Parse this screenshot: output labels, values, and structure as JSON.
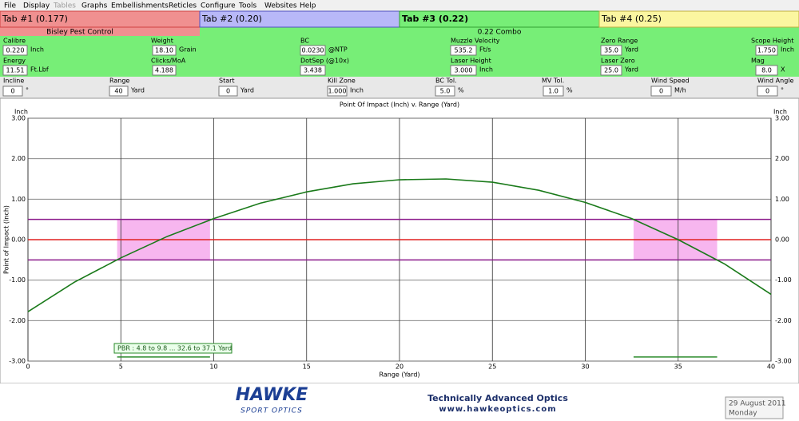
{
  "menu": [
    "File",
    "Display",
    "Tables",
    "Graphs",
    "Embellishments",
    "Reticles",
    "Configure",
    "Tools",
    "Websites",
    "Help"
  ],
  "tabs": [
    "Tab #1 (0.177)",
    "Tab #2 (0.20)",
    "Tab #3 (0.22)",
    "Tab #4 (0.25)"
  ],
  "profile": {
    "name": "Bisley Pest Control",
    "rifle": "0.22 Combo"
  },
  "fields": [
    {
      "label": "Calibre",
      "value": "0.220",
      "unit": "Inch"
    },
    {
      "label": "Weight",
      "value": "18.10",
      "unit": "Grain"
    },
    {
      "label": "BC",
      "value": "0.0230",
      "unit": "@NTP"
    },
    {
      "label": "Muzzle Velocity",
      "value": "535.2",
      "unit": "Ft/s"
    },
    {
      "label": "Zero Range",
      "value": "35.0",
      "unit": "Yard"
    },
    {
      "label": "Scope Height",
      "value": "1.750",
      "unit": "Inch"
    },
    {
      "label": "Energy",
      "value": "11.51",
      "unit": "Ft.Lbf"
    },
    {
      "label": "Clicks/MoA",
      "value": "4.188"
    },
    {
      "label": "DotSep (@10x)",
      "value": "3.438"
    },
    {
      "label": "Laser Height",
      "value": "3.000",
      "unit": "Inch"
    },
    {
      "label": "Laser Zero",
      "value": "25.0",
      "unit": "Yard"
    },
    {
      "label": "Mag",
      "value": "8.0",
      "unit": "X"
    },
    {
      "label": "Incline",
      "value": "0",
      "unit": "°"
    },
    {
      "label": "Range",
      "value": "40",
      "unit": "Yard"
    },
    {
      "label": "Start",
      "value": "0",
      "unit": "Yard"
    },
    {
      "label": "Kill Zone",
      "value": "1.000",
      "unit": "Inch"
    },
    {
      "label": "BC Tol.",
      "value": "5.0",
      "unit": "%"
    },
    {
      "label": "MV Tol.",
      "value": "1.0",
      "unit": "%"
    },
    {
      "label": "Wind Speed",
      "value": "0",
      "unit": "M/h"
    },
    {
      "label": "Wind Angle",
      "value": "0",
      "unit": "°"
    }
  ],
  "chart_data": {
    "type": "line",
    "title": "Point Of Impact (Inch) v. Range (Yard)",
    "x_label": "Range (Yard)",
    "y_label": "Point of Impact (Inch)",
    "y_unit": "Inch",
    "x": [
      0,
      2.5,
      5,
      7.5,
      10,
      12.5,
      15,
      17.5,
      20,
      22.5,
      25,
      27.5,
      30,
      32.5,
      35,
      37.5,
      40
    ],
    "series": [
      {
        "color": "#1a7a1a",
        "values": [
          -1.78,
          -1.05,
          -0.45,
          0.08,
          0.52,
          0.9,
          1.18,
          1.38,
          1.48,
          1.5,
          1.42,
          1.22,
          0.92,
          0.52,
          0.0,
          -0.6,
          -1.35
        ]
      }
    ],
    "xlim": [
      0,
      40
    ],
    "xticks": [
      0,
      5,
      10,
      15,
      20,
      25,
      30,
      35,
      40
    ],
    "ylim": [
      -3,
      3
    ],
    "yticks": [
      {
        "value": -3,
        "label": "-3.00"
      },
      {
        "value": -2,
        "label": "-2.00"
      },
      {
        "value": -1,
        "label": "-1.00"
      },
      {
        "value": 0,
        "label": "0.00"
      },
      {
        "value": 1,
        "label": "1.00"
      },
      {
        "value": 2,
        "label": "2.00"
      },
      {
        "value": 3,
        "label": "3.00"
      }
    ],
    "grid": true,
    "reference_lines": [
      {
        "value": 0,
        "color": "#e02020"
      },
      {
        "value": 0.5,
        "color": "#8b1a8b"
      },
      {
        "value": -0.5,
        "color": "#8b1a8b"
      }
    ],
    "pbr_zones": [
      {
        "x": [
          4.8,
          9.8
        ],
        "y": [
          -0.5,
          0.5
        ]
      },
      {
        "x": [
          32.6,
          37.1
        ],
        "y": [
          -0.5,
          0.5
        ]
      }
    ],
    "pbr_bar_level": -2.9,
    "pbr_label": "PBR : 4.8 to 9.8 ... 32.6 to 37.1 Yard"
  },
  "footer": {
    "logo": "HAWKE",
    "logo_sub": "SPORT OPTICS",
    "tagline": "Technically Advanced Optics",
    "url": "www.hawkeoptics.com",
    "date": "29 August 2011",
    "weekday": "Monday"
  }
}
